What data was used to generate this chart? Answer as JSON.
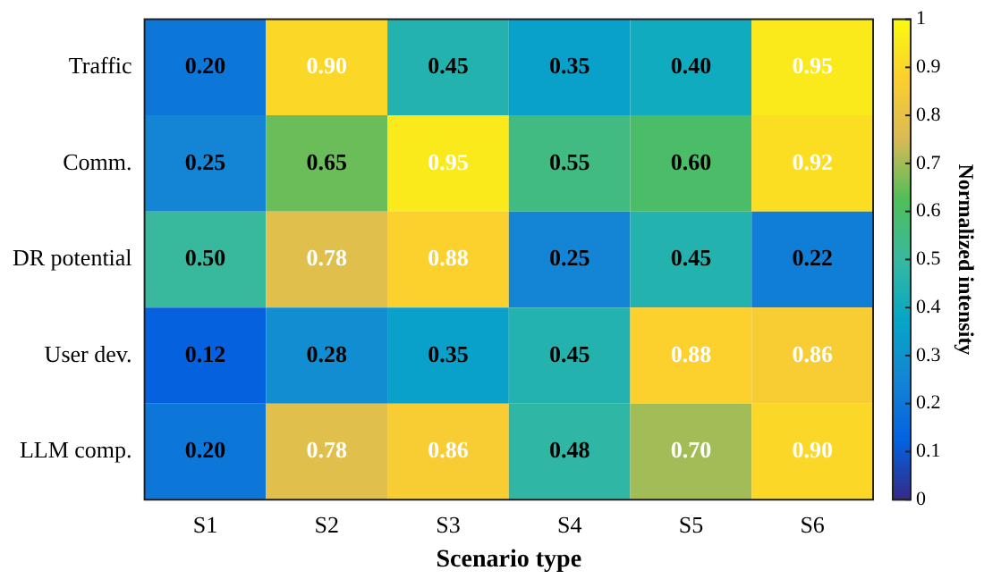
{
  "chart_data": {
    "type": "heatmap",
    "xlabel": "Scenario type",
    "clabel": "Normalized intensity",
    "categories": [
      "S1",
      "S2",
      "S3",
      "S4",
      "S5",
      "S6"
    ],
    "y_categories": [
      "Traffic",
      "Comm.",
      "DR potential",
      "User dev.",
      "LLM comp."
    ],
    "cells": [
      [
        0.2,
        0.9,
        0.45,
        0.35,
        0.4,
        0.95
      ],
      [
        0.25,
        0.65,
        0.95,
        0.55,
        0.6,
        0.92
      ],
      [
        0.5,
        0.78,
        0.88,
        0.25,
        0.45,
        0.22
      ],
      [
        0.12,
        0.28,
        0.35,
        0.45,
        0.88,
        0.86
      ],
      [
        0.2,
        0.78,
        0.86,
        0.48,
        0.7,
        0.9
      ]
    ],
    "cell_labels": [
      [
        "0.20",
        "0.90",
        "0.45",
        "0.35",
        "0.40",
        "0.95"
      ],
      [
        "0.25",
        "0.65",
        "0.95",
        "0.55",
        "0.60",
        "0.92"
      ],
      [
        "0.50",
        "0.78",
        "0.88",
        "0.25",
        "0.45",
        "0.22"
      ],
      [
        "0.12",
        "0.28",
        "0.35",
        "0.45",
        "0.88",
        "0.86"
      ],
      [
        "0.20",
        "0.78",
        "0.86",
        "0.48",
        "0.70",
        "0.90"
      ]
    ],
    "clim": [
      0,
      1
    ],
    "cticks": [
      0,
      0.1,
      0.2,
      0.3,
      0.4,
      0.5,
      0.6,
      0.7,
      0.8,
      0.9,
      1
    ],
    "data_labels": true
  }
}
